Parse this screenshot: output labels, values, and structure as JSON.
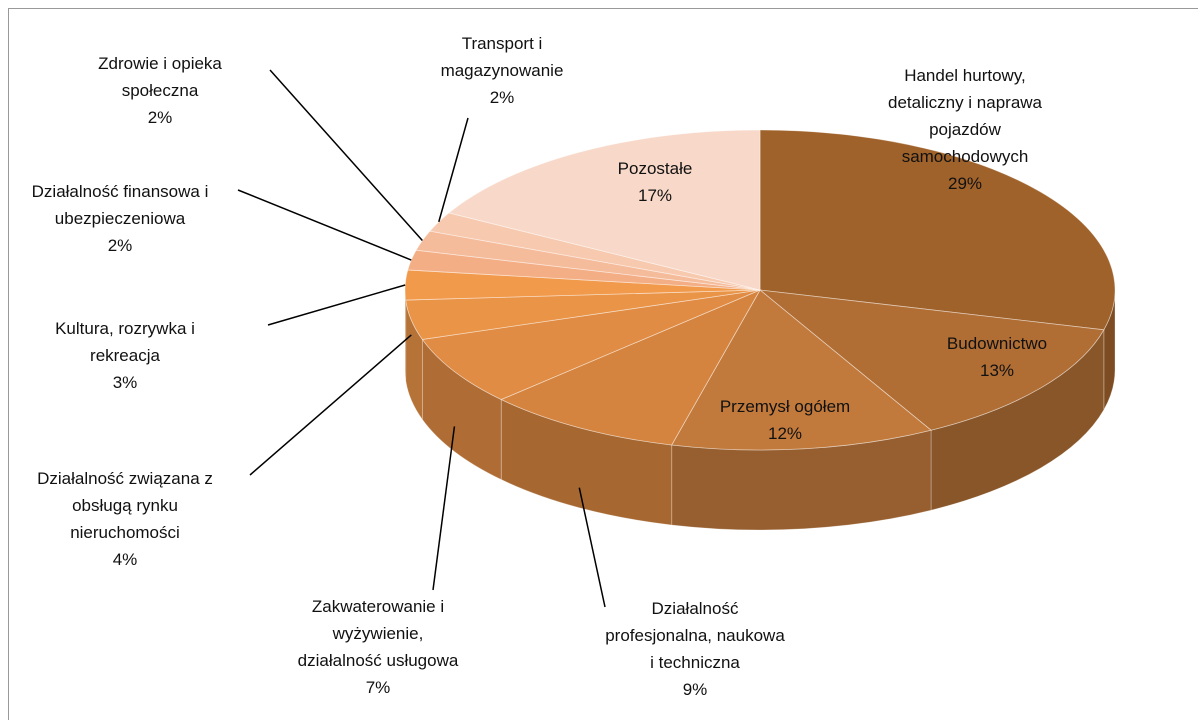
{
  "chart_data": {
    "type": "pie",
    "categories": [
      "Handel hurtowy, detaliczny i naprawa pojazdów samochodowych",
      "Budownictwo",
      "Przemysł ogółem",
      "Działalność profesjonalna, naukowa i techniczna",
      "Zakwaterowanie i wyżywienie, działalność usługowa",
      "Działalność związana z obsługą rynku nieruchomości",
      "Kultura, rozrywka i rekreacja",
      "Działalność finansowa i ubezpieczeniowa",
      "Zdrowie i opieka społeczna",
      "Transport i magazynowanie",
      "Pozostałe"
    ],
    "values": [
      29,
      13,
      12,
      9,
      7,
      4,
      3,
      2,
      2,
      2,
      17
    ],
    "value_labels": [
      "29%",
      "13%",
      "12%",
      "9%",
      "7%",
      "4%",
      "3%",
      "2%",
      "2%",
      "2%",
      "17%"
    ],
    "colors": [
      "#a0622b",
      "#b06e35",
      "#c27a3c",
      "#d5843f",
      "#e08c44",
      "#e99447",
      "#f29a4c",
      "#f3ae85",
      "#f5bc9c",
      "#f7c9ae",
      "#f8d8c8"
    ]
  }
}
